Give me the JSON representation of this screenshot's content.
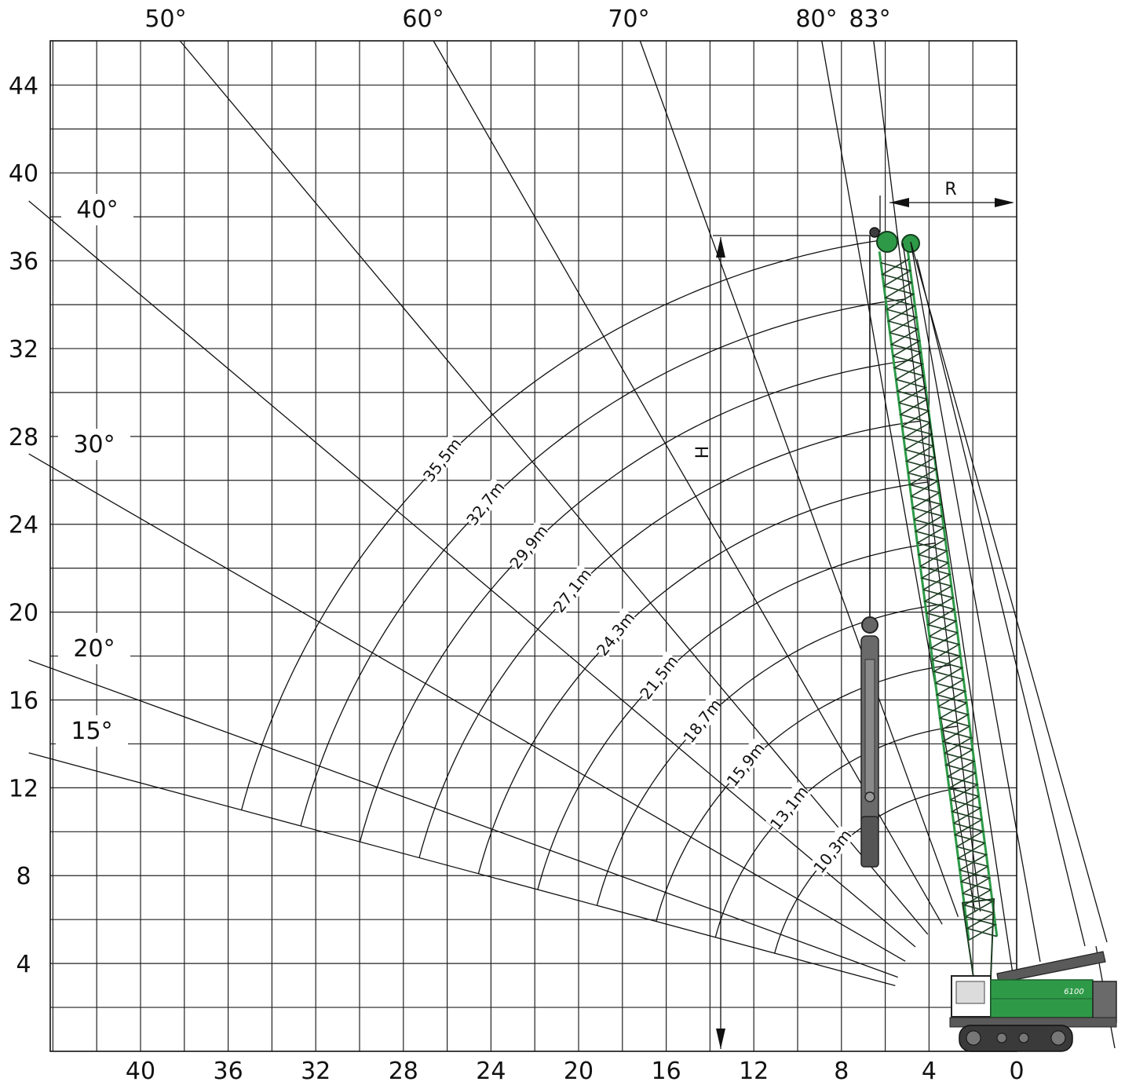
{
  "chart_data": {
    "type": "crane-working-range",
    "x_ticks": [
      "40",
      "36",
      "32",
      "28",
      "24",
      "20",
      "16",
      "12",
      "8",
      "4",
      "0"
    ],
    "y_ticks": [
      "44",
      "40",
      "36",
      "32",
      "28",
      "24",
      "20",
      "16",
      "12",
      "8",
      "4"
    ],
    "x_range_m": [
      44,
      0
    ],
    "y_range_m": [
      0,
      46
    ],
    "grid": true,
    "top_angle_labels": [
      "50°",
      "60°",
      "70°",
      "80°",
      "83°"
    ],
    "left_angle_labels": [
      "40°",
      "30°",
      "20°",
      "15°"
    ],
    "boom_lengths": [
      {
        "label": "35,5m",
        "value": 35.5
      },
      {
        "label": "32,7m",
        "value": 32.7
      },
      {
        "label": "29,9m",
        "value": 29.9
      },
      {
        "label": "27,1m",
        "value": 27.1
      },
      {
        "label": "24,3m",
        "value": 24.3
      },
      {
        "label": "21,5m",
        "value": 21.5
      },
      {
        "label": "18,7m",
        "value": 18.7
      },
      {
        "label": "15,9m",
        "value": 15.9
      },
      {
        "label": "13,1m",
        "value": 13.1
      },
      {
        "label": "10,3m",
        "value": 10.3
      }
    ],
    "angle_lines_deg": [
      15,
      20,
      30,
      40,
      50,
      60,
      70,
      80,
      83
    ],
    "dimension_labels": {
      "radius": "R",
      "height": "H"
    },
    "machine_badge": "6100",
    "colors": {
      "boom": "#2e9a48",
      "machine_grey": "#5a5a5a",
      "line": "#111111"
    }
  }
}
